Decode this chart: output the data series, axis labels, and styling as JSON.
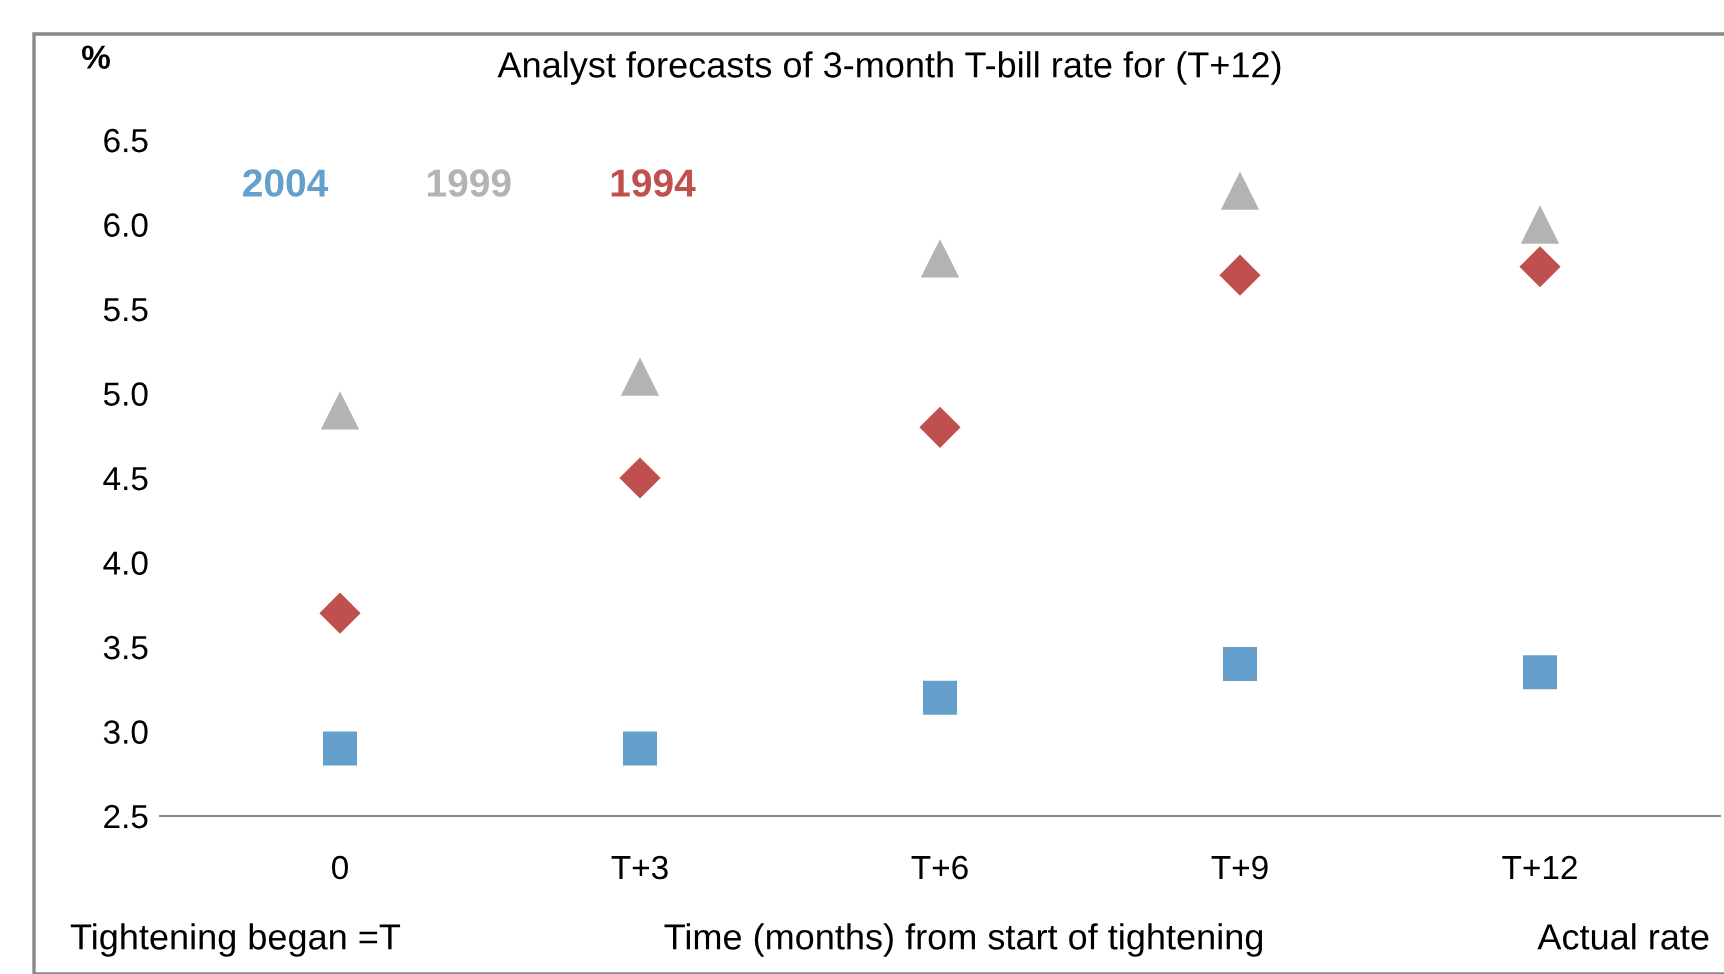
{
  "chart_data": {
    "type": "scatter",
    "title": "Analyst forecasts of 3-month T-bill rate for (T+12)",
    "ylabel": "%",
    "xlabel": "Time (months) from start of tightening",
    "categories": [
      "0",
      "T+3",
      "T+6",
      "T+9",
      "T+12"
    ],
    "series": [
      {
        "name": "2004",
        "color": "#64a0cb",
        "marker": "square",
        "values": [
          2.9,
          2.9,
          3.2,
          3.4,
          3.35
        ]
      },
      {
        "name": "1999",
        "color": "#b3b3b3",
        "marker": "triangle",
        "values": [
          4.9,
          5.1,
          5.8,
          6.2,
          6.0
        ]
      },
      {
        "name": "1994",
        "color": "#c0504d",
        "marker": "diamond",
        "values": [
          3.7,
          4.5,
          4.8,
          5.7,
          5.75
        ]
      }
    ],
    "ylim": [
      2.5,
      6.5
    ],
    "yticks": [
      2.5,
      {
        "value": 3,
        "label": "3.0"
      },
      3.5,
      {
        "value": 4,
        "label": "4.0"
      },
      4.5,
      {
        "value": 5,
        "label": "5.0"
      },
      5.5,
      {
        "value": 6,
        "label": "6.0"
      },
      6.5
    ],
    "annotations": [
      "Tightening began =T",
      "Actual rate"
    ],
    "legend": "top left",
    "grid": false
  }
}
